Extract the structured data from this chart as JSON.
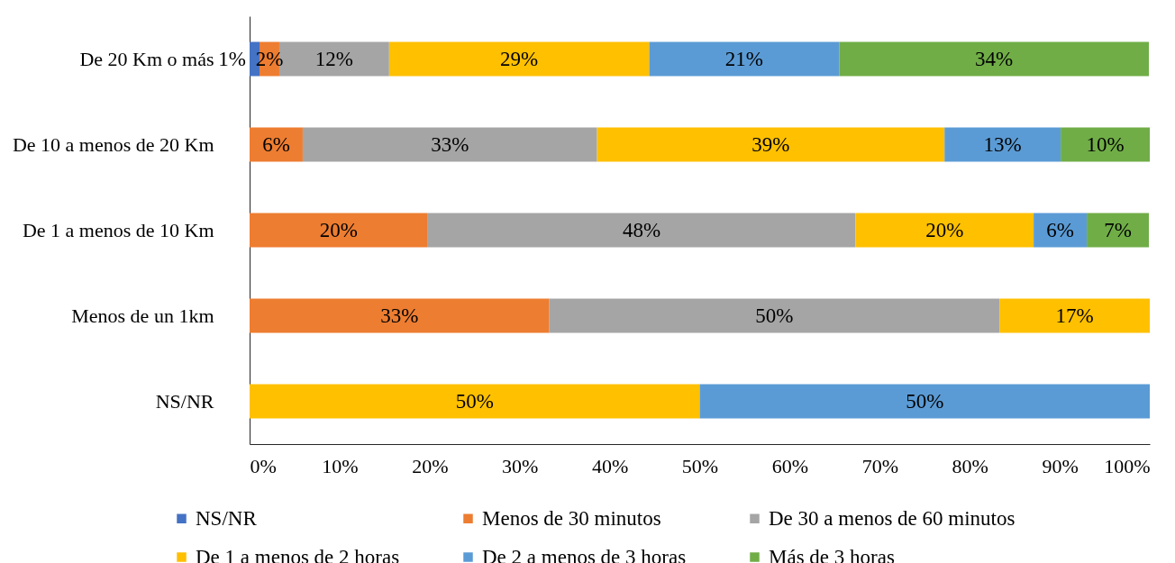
{
  "chart_data": {
    "type": "bar",
    "orientation": "horizontal",
    "stacked": true,
    "grid": false,
    "legend": "bottom",
    "categories": [
      "De 20 Km o más",
      "De 10 a menos de 20 Km",
      "De 1 a menos de 10 Km",
      "Menos de un 1km",
      "NS/NR"
    ],
    "xlim": [
      0,
      100
    ],
    "xticks": [
      {
        "value": 0,
        "label": "0%"
      },
      {
        "value": 10,
        "label": "10%"
      },
      {
        "value": 20,
        "label": "20%"
      },
      {
        "value": 30,
        "label": "30%"
      },
      {
        "value": 40,
        "label": "40%"
      },
      {
        "value": 50,
        "label": "50%"
      },
      {
        "value": 60,
        "label": "60%"
      },
      {
        "value": 70,
        "label": "70%"
      },
      {
        "value": 80,
        "label": "80%"
      },
      {
        "value": 90,
        "label": "90%"
      },
      {
        "value": 100,
        "label": "100%"
      }
    ],
    "series": [
      {
        "name": "NS/NR",
        "color": "#4472c4",
        "values": [
          1.1,
          null,
          null,
          null,
          null
        ],
        "value_labels": [
          "1%",
          null,
          null,
          null,
          null
        ]
      },
      {
        "name": "Menos de 30 minutos",
        "color": "#ed7d31",
        "values": [
          2.2,
          5.9,
          19.8,
          33.3,
          null
        ],
        "value_labels": [
          "2%",
          "6%",
          "20%",
          "33%",
          null
        ]
      },
      {
        "name": "De 30 a menos de 60 minutos",
        "color": "#a5a5a5",
        "values": [
          12.2,
          32.7,
          47.5,
          50.0,
          null
        ],
        "value_labels": [
          "12%",
          "33%",
          "48%",
          "50%",
          null
        ]
      },
      {
        "name": "De 1 a menos de 2 horas",
        "color": "#ffc000",
        "values": [
          28.9,
          38.6,
          19.8,
          16.7,
          50
        ],
        "value_labels": [
          "29%",
          "39%",
          "20%",
          "17%",
          "50%"
        ]
      },
      {
        "name": "De 2 a menos de 3 horas",
        "color": "#5b9bd5",
        "values": [
          21.1,
          12.9,
          5.9,
          null,
          50
        ],
        "value_labels": [
          "21%",
          "13%",
          "6%",
          null,
          "50%"
        ]
      },
      {
        "name": "Más de 3 horas",
        "color": "#70ad47",
        "values": [
          34.4,
          9.9,
          6.9,
          null,
          null
        ],
        "value_labels": [
          "34%",
          "10%",
          "7%",
          null,
          null
        ]
      }
    ]
  }
}
